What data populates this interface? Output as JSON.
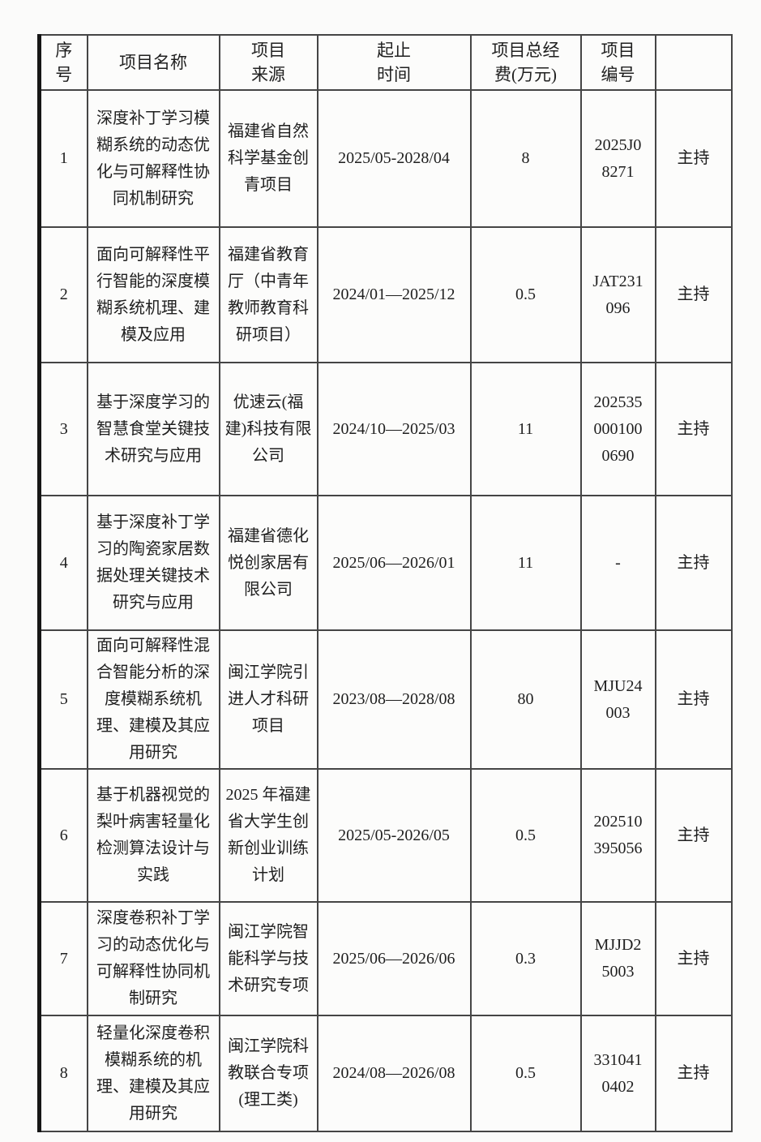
{
  "colors": {
    "page_background": "#fbfbfa",
    "grid_line": "#454545",
    "outer_frame": "#161616",
    "text": "#1f1f1f"
  },
  "table": {
    "headers": {
      "no": "序\n号",
      "name": "项目名称",
      "source": "项目\n来源",
      "period": "起止\n时间",
      "fee": "项目总经\n费(万元)",
      "code": "项目\n编号",
      "role": ""
    },
    "rows": [
      {
        "no": "1",
        "name": "深度补丁学习模糊系统的动态优化与可解释性协同机制研究",
        "source": "福建省自然科学基金创青项目",
        "period": "2025/05-2028/04",
        "fee": "8",
        "code": "2025J0\n8271",
        "role": "主持"
      },
      {
        "no": "2",
        "name": "面向可解释性平行智能的深度模糊系统机理、建模及应用",
        "source": "福建省教育厅（中青年教师教育科研项目）",
        "period": "2024/01—2025/12",
        "fee": "0.5",
        "code": "JAT231\n096",
        "role": "主持"
      },
      {
        "no": "3",
        "name": "基于深度学习的智慧食堂关键技术研究与应用",
        "source": "优速云(福建)科技有限公司",
        "period": "2024/10—2025/03",
        "fee": "11",
        "code": "202535\n000100\n0690",
        "role": "主持"
      },
      {
        "no": "4",
        "name": "基于深度补丁学习的陶瓷家居数据处理关键技术研究与应用",
        "source": "福建省德化悦创家居有限公司",
        "period": "2025/06—2026/01",
        "fee": "11",
        "code": "-",
        "role": "主持"
      },
      {
        "no": "5",
        "name": "面向可解释性混合智能分析的深度模糊系统机理、建模及其应用研究",
        "source": "闽江学院引进人才科研项目",
        "period": "2023/08—2028/08",
        "fee": "80",
        "code": "MJU24\n003",
        "role": "主持"
      },
      {
        "no": "6",
        "name": "基于机器视觉的梨叶病害轻量化检测算法设计与实践",
        "source": "2025 年福建省大学生创新创业训练计划",
        "period": "2025/05-2026/05",
        "fee": "0.5",
        "code": "202510\n395056",
        "role": "主持"
      },
      {
        "no": "7",
        "name": "深度卷积补丁学习的动态优化与可解释性协同机制研究",
        "source": "闽江学院智能科学与技术研究专项",
        "period": "2025/06—2026/06",
        "fee": "0.3",
        "code": "MJJD2\n5003",
        "role": "主持"
      },
      {
        "no": "8",
        "name": "轻量化深度卷积模糊系统的机理、建模及其应用研究",
        "source": "闽江学院科教联合专项(理工类)",
        "period": "2024/08—2026/08",
        "fee": "0.5",
        "code": "331041\n0402",
        "role": "主持"
      }
    ]
  }
}
